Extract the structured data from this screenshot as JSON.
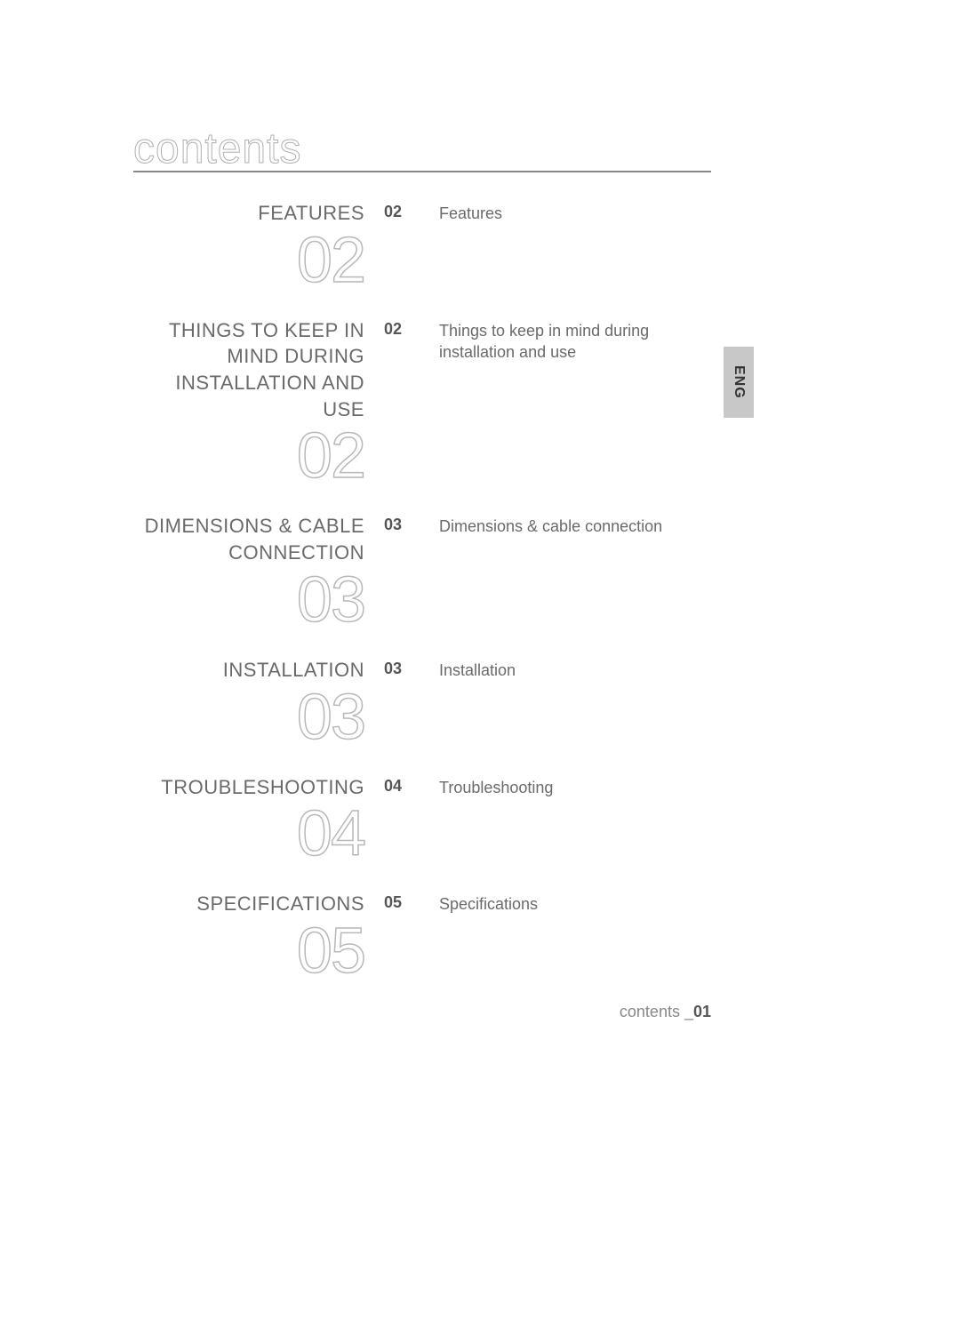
{
  "header": {
    "title": "contents"
  },
  "lang_tab": "ENG",
  "sections": [
    {
      "title": "FEATURES",
      "big_number": "02",
      "page": "02",
      "desc": "Features"
    },
    {
      "title": "THINGS TO KEEP IN MIND DURING INSTALLATION AND USE",
      "big_number": "02",
      "page": "02",
      "desc": "Things to keep in mind during installation and use"
    },
    {
      "title": "DIMENSIONS & CABLE CONNECTION",
      "big_number": "03",
      "page": "03",
      "desc": "Dimensions & cable connection"
    },
    {
      "title": "INSTALLATION",
      "big_number": "03",
      "page": "03",
      "desc": "Installation"
    },
    {
      "title": "TROUBLESHOOTING",
      "big_number": "04",
      "page": "04",
      "desc": "Troubleshooting"
    },
    {
      "title": "SPECIFICATIONS",
      "big_number": "05",
      "page": "05",
      "desc": "Specifications"
    }
  ],
  "footer": {
    "label": "contents _",
    "page": "01"
  },
  "colors": {
    "text": "#6a6a6a",
    "rule": "#888888",
    "outline_number": "#b8b8b8",
    "page_bold": "#555555",
    "tab_bg": "#c8c8c8",
    "tab_text": "#333333",
    "footer_muted": "#888888"
  },
  "typography": {
    "header_size_pt": 36,
    "section_title_size_pt": 16,
    "big_number_size_pt": 54,
    "body_size_pt": 13
  }
}
